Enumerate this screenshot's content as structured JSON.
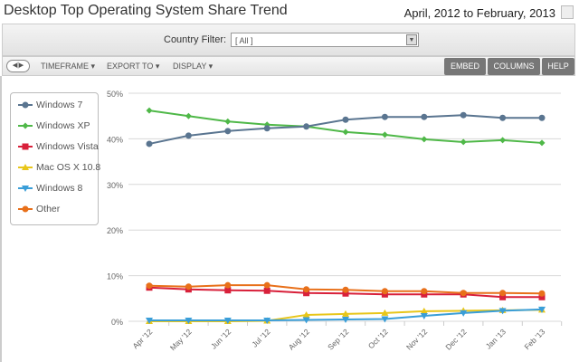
{
  "header": {
    "title": "Desktop Top Operating System Share Trend",
    "date_range": "April, 2012 to February, 2013"
  },
  "filter": {
    "label": "Country Filter:",
    "value": "[ All ]"
  },
  "toolbar": {
    "timeframe": "TIMEFRAME ▾",
    "export": "EXPORT TO ▾",
    "display": "DISPLAY ▾",
    "embed": "EMBED",
    "columns": "COLUMNS",
    "help": "HELP"
  },
  "chart_data": {
    "type": "line",
    "categories": [
      "Apr '12",
      "May '12",
      "Jun '12",
      "Jul '12",
      "Aug '12",
      "Sep '12",
      "Oct '12",
      "Nov '12",
      "Dec '12",
      "Jan '13",
      "Feb '13"
    ],
    "yticks": [
      "0%",
      "10%",
      "20%",
      "30%",
      "40%",
      "50%"
    ],
    "ylim": [
      0,
      50
    ],
    "grid": true,
    "legend": "left",
    "series": [
      {
        "name": "Windows 7",
        "color": "#5a7590",
        "marker": "circle",
        "values": [
          38.9,
          40.7,
          41.7,
          42.3,
          42.7,
          44.2,
          44.8,
          44.8,
          45.2,
          44.6,
          44.6
        ]
      },
      {
        "name": "Windows XP",
        "color": "#4fb848",
        "marker": "diamond",
        "values": [
          46.2,
          45.0,
          43.8,
          43.1,
          42.7,
          41.5,
          40.9,
          39.9,
          39.3,
          39.7,
          39.1
        ]
      },
      {
        "name": "Windows Vista",
        "color": "#d8203a",
        "marker": "square",
        "values": [
          7.4,
          7.0,
          6.8,
          6.7,
          6.2,
          6.1,
          5.9,
          5.9,
          5.9,
          5.3,
          5.3
        ]
      },
      {
        "name": "Mac OS X 10.8",
        "color": "#e8c61a",
        "marker": "triangle",
        "values": [
          0,
          0,
          0,
          0.1,
          1.4,
          1.6,
          1.8,
          2.2,
          2.3,
          2.4,
          2.5
        ]
      },
      {
        "name": "Windows 8",
        "color": "#3a9ed8",
        "marker": "triangle-down",
        "values": [
          0.2,
          0.2,
          0.2,
          0.2,
          0.3,
          0.4,
          0.5,
          1.2,
          1.8,
          2.3,
          2.6
        ]
      },
      {
        "name": "Other",
        "color": "#e8701a",
        "marker": "circle",
        "values": [
          7.8,
          7.6,
          7.9,
          7.9,
          7.0,
          6.9,
          6.6,
          6.6,
          6.2,
          6.2,
          6.1
        ]
      }
    ]
  }
}
